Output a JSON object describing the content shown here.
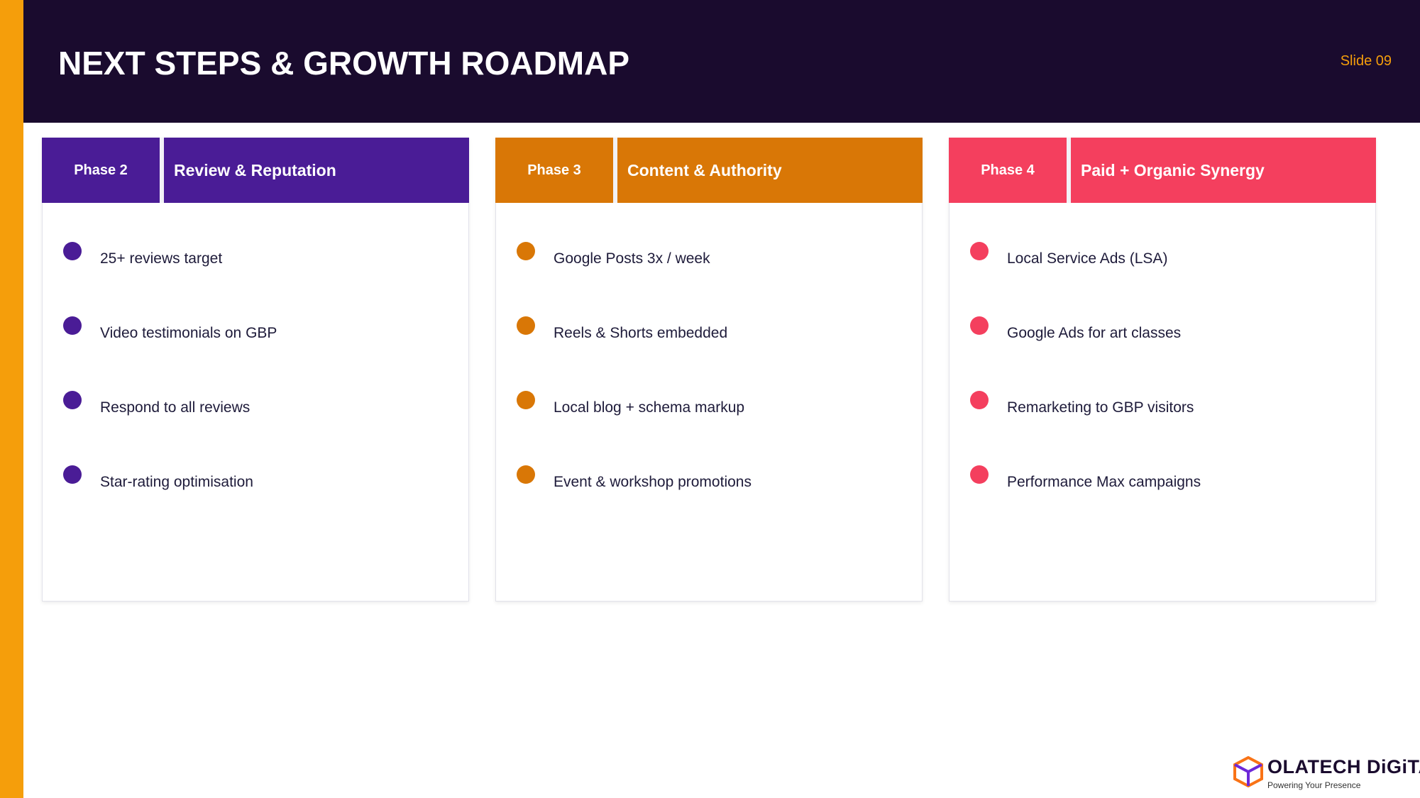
{
  "header": {
    "title": "NEXT STEPS & GROWTH ROADMAP",
    "slide": "Slide 09"
  },
  "phases": [
    {
      "label": "Phase 2",
      "title": "Review & Reputation",
      "color": "#4a1c96",
      "items": [
        "25+ reviews target",
        "Video testimonials on GBP",
        "Respond to all reviews",
        "Star-rating optimisation"
      ]
    },
    {
      "label": "Phase 3",
      "title": "Content & Authority",
      "color": "#d97706",
      "items": [
        "Google Posts 3x / week",
        "Reels & Shorts embedded",
        "Local blog + schema markup",
        "Event & workshop promotions"
      ]
    },
    {
      "label": "Phase 4",
      "title": "Paid + Organic Synergy",
      "color": "#f43f5e",
      "items": [
        "Local Service Ads (LSA)",
        "Google Ads for art classes",
        "Remarketing to GBP visitors",
        "Performance Max campaigns"
      ]
    }
  ],
  "logo": {
    "name": "OLATECH DiGiTAL",
    "tagline": "Powering Your Presence"
  }
}
